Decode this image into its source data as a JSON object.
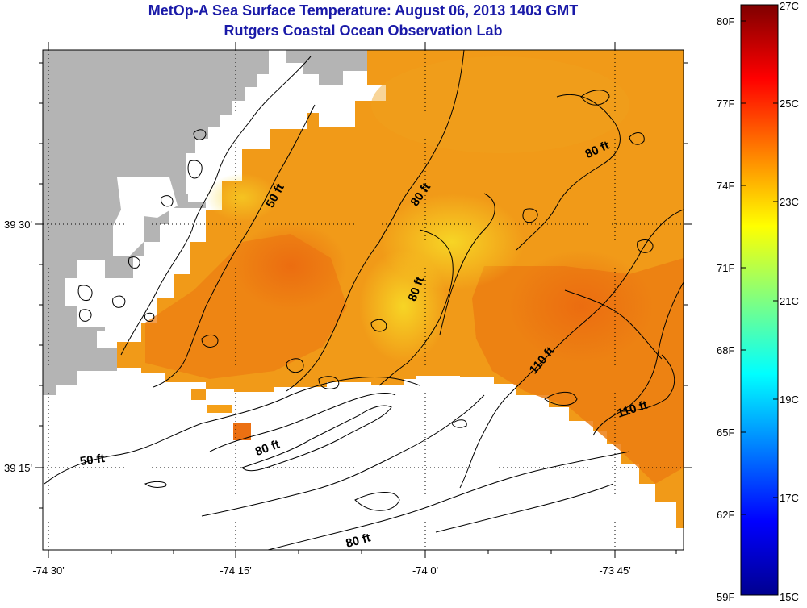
{
  "title_line1": "MetOp-A Sea Surface Temperature:  August 06, 2013 1403 GMT",
  "title_line2": "Rutgers Coastal Ocean Observation Lab",
  "axes": {
    "lon_labels": [
      "-74 30'",
      "-74 15'",
      "-74 0'",
      "-73 45'"
    ],
    "lat_labels": [
      "39 30'",
      "39 15'"
    ]
  },
  "contour_labels": [
    "50 ft",
    "80 ft",
    "80 ft",
    "80 ft",
    "80 ft",
    "50 ft",
    "80 ft",
    "110 ft",
    "110 ft"
  ],
  "colorbar": {
    "fahrenheit": [
      "80F",
      "77F",
      "74F",
      "71F",
      "68F",
      "65F",
      "62F",
      "59F"
    ],
    "celsius": [
      "27C",
      "25C",
      "23C",
      "21C",
      "19C",
      "17C",
      "15C"
    ],
    "colors": [
      "#7f0000",
      "#ff0000",
      "#ff8000",
      "#ffff00",
      "#80ff80",
      "#00ffff",
      "#0080ff",
      "#0000ff",
      "#00008f"
    ]
  },
  "colors": {
    "land": "#b4b4b4",
    "no_data": "#ffffff",
    "sst_warm": "#f08010",
    "sst_mid": "#f5a518",
    "sst_cool": "#f5cc20",
    "title": "#1a1aa8"
  }
}
